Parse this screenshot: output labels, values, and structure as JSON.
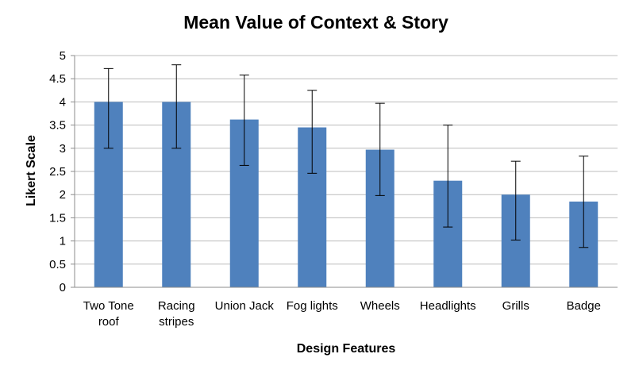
{
  "chart_data": {
    "type": "bar",
    "title": "Mean Value of Context & Story",
    "xlabel": "Design Features",
    "ylabel": "Likert Scale",
    "categories": [
      [
        "Two Tone",
        "roof"
      ],
      [
        "Racing",
        "stripes"
      ],
      [
        "Union Jack"
      ],
      [
        "Fog lights"
      ],
      [
        "Wheels"
      ],
      [
        "Headlights"
      ],
      [
        "Grills"
      ],
      [
        "Badge"
      ]
    ],
    "values": [
      4.0,
      4.0,
      3.62,
      3.45,
      2.97,
      2.3,
      2.0,
      1.85
    ],
    "error_low": [
      3.0,
      3.0,
      2.63,
      2.46,
      1.98,
      1.3,
      1.02,
      0.86
    ],
    "error_high": [
      4.72,
      4.8,
      4.58,
      4.25,
      3.97,
      3.5,
      2.72,
      2.83
    ],
    "ylim": [
      0,
      5
    ],
    "yticks": [
      "0",
      "0.5",
      "1",
      "1.5",
      "2",
      "2.5",
      "3",
      "3.5",
      "4",
      "4.5",
      "5"
    ],
    "ytick_values": [
      0,
      0.5,
      1,
      1.5,
      2,
      2.5,
      3,
      3.5,
      4,
      4.5,
      5
    ],
    "grid": true,
    "bar_color": "#4f81bd"
  }
}
